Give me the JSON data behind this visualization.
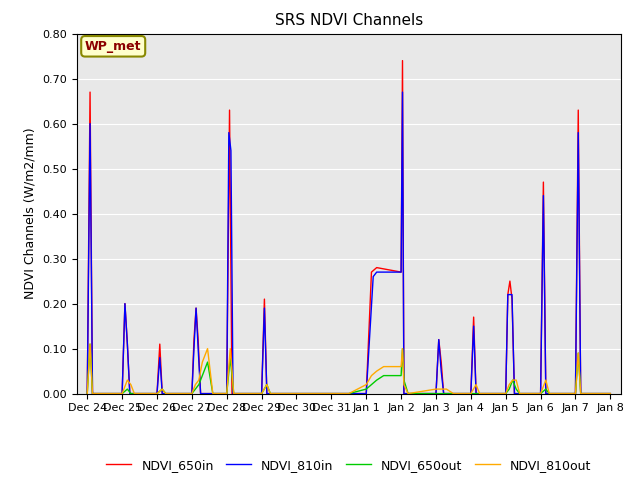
{
  "title": "SRS NDVI Channels",
  "ylabel": "NDVI Channels (W/m2/mm)",
  "annotation": "WP_met",
  "ylim": [
    0.0,
    0.8
  ],
  "background_color": "#e8e8e8",
  "legend_entries": [
    "NDVI_650in",
    "NDVI_810in",
    "NDVI_650out",
    "NDVI_810out"
  ],
  "line_colors": [
    "#ff0000",
    "#0000ff",
    "#00cc00",
    "#ffaa00"
  ],
  "x_tick_labels": [
    "Dec 24",
    "Dec 25",
    "Dec 26",
    "Dec 27",
    "Dec 28",
    "Dec 29",
    "Dec 30",
    "Dec 31",
    "Jan 1",
    "Jan 2",
    "Jan 3",
    "Jan 4",
    "Jan 5",
    "Jan 6",
    "Jan 7",
    "Jan 8"
  ],
  "x_tick_offsets": [
    0,
    1,
    2,
    3,
    4,
    5,
    6,
    7,
    8,
    9,
    10,
    11,
    12,
    13,
    14,
    15
  ],
  "series": {
    "NDVI_650in": [
      [
        0.0,
        0.0
      ],
      [
        0.08,
        0.67
      ],
      [
        0.15,
        0.0
      ],
      [
        1.0,
        0.0
      ],
      [
        1.08,
        0.2
      ],
      [
        1.15,
        0.11
      ],
      [
        1.22,
        0.0
      ],
      [
        2.0,
        0.0
      ],
      [
        2.08,
        0.11
      ],
      [
        2.15,
        0.0
      ],
      [
        3.0,
        0.0
      ],
      [
        3.06,
        0.12
      ],
      [
        3.12,
        0.19
      ],
      [
        3.18,
        0.12
      ],
      [
        3.25,
        0.0
      ],
      [
        4.0,
        0.0
      ],
      [
        4.08,
        0.63
      ],
      [
        4.15,
        0.0
      ],
      [
        5.0,
        0.0
      ],
      [
        5.08,
        0.21
      ],
      [
        5.15,
        0.0
      ],
      [
        6.0,
        0.0
      ],
      [
        6.5,
        0.0
      ],
      [
        7.0,
        0.0
      ],
      [
        7.5,
        0.0
      ],
      [
        8.0,
        0.0
      ],
      [
        8.15,
        0.27
      ],
      [
        8.3,
        0.28
      ],
      [
        9.0,
        0.27
      ],
      [
        9.04,
        0.74
      ],
      [
        9.08,
        0.0
      ],
      [
        10.0,
        0.0
      ],
      [
        10.08,
        0.12
      ],
      [
        10.15,
        0.07
      ],
      [
        10.22,
        0.0
      ],
      [
        11.0,
        0.0
      ],
      [
        11.08,
        0.17
      ],
      [
        11.15,
        0.0
      ],
      [
        12.0,
        0.0
      ],
      [
        12.06,
        0.22
      ],
      [
        12.12,
        0.25
      ],
      [
        12.18,
        0.21
      ],
      [
        12.25,
        0.0
      ],
      [
        13.0,
        0.0
      ],
      [
        13.08,
        0.47
      ],
      [
        13.15,
        0.0
      ],
      [
        14.0,
        0.0
      ],
      [
        14.08,
        0.63
      ],
      [
        14.15,
        0.0
      ],
      [
        15.0,
        0.0
      ]
    ],
    "NDVI_810in": [
      [
        0.0,
        0.0
      ],
      [
        0.08,
        0.6
      ],
      [
        0.15,
        0.0
      ],
      [
        1.0,
        0.0
      ],
      [
        1.08,
        0.2
      ],
      [
        1.15,
        0.11
      ],
      [
        1.22,
        0.0
      ],
      [
        2.0,
        0.0
      ],
      [
        2.08,
        0.08
      ],
      [
        2.15,
        0.0
      ],
      [
        3.0,
        0.0
      ],
      [
        3.06,
        0.1
      ],
      [
        3.12,
        0.19
      ],
      [
        3.18,
        0.1
      ],
      [
        3.25,
        0.0
      ],
      [
        4.0,
        0.0
      ],
      [
        4.06,
        0.58
      ],
      [
        4.12,
        0.54
      ],
      [
        4.18,
        0.0
      ],
      [
        5.0,
        0.0
      ],
      [
        5.08,
        0.19
      ],
      [
        5.15,
        0.0
      ],
      [
        6.0,
        0.0
      ],
      [
        6.5,
        0.0
      ],
      [
        7.0,
        0.0
      ],
      [
        7.5,
        0.0
      ],
      [
        8.0,
        0.0
      ],
      [
        8.2,
        0.26
      ],
      [
        8.3,
        0.27
      ],
      [
        9.0,
        0.27
      ],
      [
        9.04,
        0.67
      ],
      [
        9.08,
        0.0
      ],
      [
        10.0,
        0.0
      ],
      [
        10.08,
        0.12
      ],
      [
        10.15,
        0.05
      ],
      [
        10.22,
        0.0
      ],
      [
        11.0,
        0.0
      ],
      [
        11.08,
        0.15
      ],
      [
        11.15,
        0.0
      ],
      [
        12.0,
        0.0
      ],
      [
        12.06,
        0.22
      ],
      [
        12.12,
        0.22
      ],
      [
        12.18,
        0.22
      ],
      [
        12.25,
        0.0
      ],
      [
        13.0,
        0.0
      ],
      [
        13.08,
        0.44
      ],
      [
        13.15,
        0.0
      ],
      [
        14.0,
        0.0
      ],
      [
        14.08,
        0.58
      ],
      [
        14.15,
        0.0
      ],
      [
        15.0,
        0.0
      ]
    ],
    "NDVI_650out": [
      [
        0.0,
        0.0
      ],
      [
        0.08,
        0.11
      ],
      [
        0.15,
        0.0
      ],
      [
        1.0,
        0.0
      ],
      [
        1.15,
        0.01
      ],
      [
        1.25,
        0.0
      ],
      [
        2.0,
        0.0
      ],
      [
        2.15,
        0.01
      ],
      [
        2.25,
        0.0
      ],
      [
        3.0,
        0.0
      ],
      [
        3.1,
        0.01
      ],
      [
        3.2,
        0.02
      ],
      [
        3.3,
        0.04
      ],
      [
        3.45,
        0.07
      ],
      [
        3.6,
        0.0
      ],
      [
        4.0,
        0.0
      ],
      [
        4.1,
        0.08
      ],
      [
        4.2,
        0.0
      ],
      [
        5.0,
        0.0
      ],
      [
        5.15,
        0.02
      ],
      [
        5.25,
        0.0
      ],
      [
        6.0,
        0.0
      ],
      [
        6.5,
        0.0
      ],
      [
        7.0,
        0.0
      ],
      [
        7.5,
        0.0
      ],
      [
        8.0,
        0.01
      ],
      [
        8.15,
        0.02
      ],
      [
        8.3,
        0.03
      ],
      [
        8.5,
        0.04
      ],
      [
        9.0,
        0.04
      ],
      [
        9.04,
        0.1
      ],
      [
        9.08,
        0.03
      ],
      [
        9.2,
        0.0
      ],
      [
        10.0,
        0.0
      ],
      [
        10.5,
        0.0
      ],
      [
        11.0,
        0.0
      ],
      [
        11.5,
        0.0
      ],
      [
        12.0,
        0.0
      ],
      [
        12.1,
        0.01
      ],
      [
        12.2,
        0.03
      ],
      [
        12.3,
        0.01
      ],
      [
        12.4,
        0.0
      ],
      [
        13.0,
        0.0
      ],
      [
        13.15,
        0.01
      ],
      [
        13.25,
        0.0
      ],
      [
        14.0,
        0.0
      ],
      [
        14.08,
        0.09
      ],
      [
        14.15,
        0.0
      ],
      [
        15.0,
        0.0
      ]
    ],
    "NDVI_810out": [
      [
        0.0,
        0.0
      ],
      [
        0.08,
        0.11
      ],
      [
        0.15,
        0.0
      ],
      [
        1.0,
        0.0
      ],
      [
        1.15,
        0.03
      ],
      [
        1.25,
        0.02
      ],
      [
        1.35,
        0.0
      ],
      [
        2.0,
        0.0
      ],
      [
        2.15,
        0.01
      ],
      [
        2.25,
        0.0
      ],
      [
        3.0,
        0.0
      ],
      [
        3.1,
        0.02
      ],
      [
        3.2,
        0.03
      ],
      [
        3.3,
        0.07
      ],
      [
        3.45,
        0.1
      ],
      [
        3.6,
        0.0
      ],
      [
        4.0,
        0.0
      ],
      [
        4.1,
        0.1
      ],
      [
        4.2,
        0.0
      ],
      [
        5.0,
        0.0
      ],
      [
        5.15,
        0.02
      ],
      [
        5.25,
        0.0
      ],
      [
        6.0,
        0.0
      ],
      [
        6.5,
        0.0
      ],
      [
        7.0,
        0.0
      ],
      [
        7.5,
        0.0
      ],
      [
        8.0,
        0.02
      ],
      [
        8.15,
        0.04
      ],
      [
        8.3,
        0.05
      ],
      [
        8.5,
        0.06
      ],
      [
        9.0,
        0.06
      ],
      [
        9.04,
        0.1
      ],
      [
        9.08,
        0.02
      ],
      [
        9.2,
        0.0
      ],
      [
        10.0,
        0.01
      ],
      [
        10.3,
        0.01
      ],
      [
        10.5,
        0.0
      ],
      [
        11.0,
        0.0
      ],
      [
        11.15,
        0.02
      ],
      [
        11.25,
        0.0
      ],
      [
        12.0,
        0.0
      ],
      [
        12.1,
        0.02
      ],
      [
        12.2,
        0.03
      ],
      [
        12.3,
        0.03
      ],
      [
        12.4,
        0.0
      ],
      [
        13.0,
        0.0
      ],
      [
        13.15,
        0.03
      ],
      [
        13.25,
        0.0
      ],
      [
        14.0,
        0.0
      ],
      [
        14.08,
        0.09
      ],
      [
        14.15,
        0.0
      ],
      [
        15.0,
        0.0
      ]
    ]
  }
}
